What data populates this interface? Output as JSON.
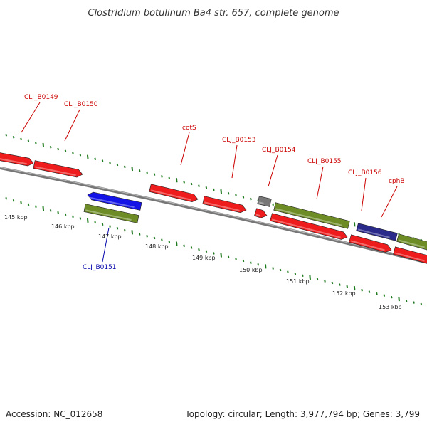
{
  "title": "Clostridium botulinum Ba4 str. 657, complete genome",
  "footer": {
    "accession": "Accession: NC_012658",
    "summary": "Topology: circular; Length: 3,977,794 bp; Genes: 3,799"
  },
  "colors": {
    "gene_red": "#ee1c1c",
    "gene_olive": "#6e8c26",
    "gene_blue": "#1414e6",
    "gene_navy": "#2a2a8a",
    "gene_gray": "#777777",
    "label_red": "#cc0000",
    "label_blue": "#0000aa",
    "tick_green": "#1e7a1e",
    "backbone": "#888888"
  },
  "scale_labels": [
    "145 kbp",
    "146 kbp",
    "147 kbp",
    "148 kbp",
    "149 kbp",
    "150 kbp",
    "151 kbp",
    "152 kbp",
    "153 kbp"
  ],
  "gene_labels": [
    {
      "text": "CLJ_B0149",
      "color": "label_red"
    },
    {
      "text": "CLJ_B0150",
      "color": "label_red"
    },
    {
      "text": "cotS",
      "color": "label_red"
    },
    {
      "text": "CLJ_B0153",
      "color": "label_red"
    },
    {
      "text": "CLJ_B0154",
      "color": "label_red"
    },
    {
      "text": "CLJ_B0155",
      "color": "label_red"
    },
    {
      "text": "CLJ_B0156",
      "color": "label_red"
    },
    {
      "text": "cphB",
      "color": "label_red"
    },
    {
      "text": "CLJ_B0151",
      "color": "label_blue"
    }
  ],
  "gene_feature_colors": [
    "gene_red",
    "gene_red",
    "gene_blue",
    "gene_olive",
    "gene_red",
    "gene_red",
    "gene_gray",
    "gene_red",
    "gene_olive",
    "gene_red",
    "gene_navy",
    "gene_red",
    "gene_olive",
    "gene_red"
  ]
}
